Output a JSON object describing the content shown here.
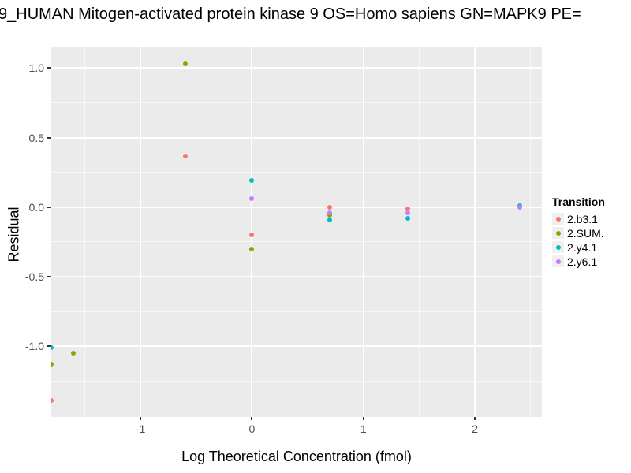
{
  "title": "9_HUMAN Mitogen-activated protein kinase 9 OS=Homo sapiens GN=MAPK9 PE=",
  "chart_data": {
    "type": "scatter",
    "title": "9_HUMAN Mitogen-activated protein kinase 9 OS=Homo sapiens GN=MAPK9 PE=",
    "xlabel": "Log Theoretical Concentration (fmol)",
    "ylabel": "Residual",
    "xlim": [
      -1.8,
      2.6
    ],
    "ylim": [
      -1.51,
      1.15
    ],
    "x_major_ticks": [
      -1,
      0,
      1,
      2
    ],
    "x_tick_labels": [
      "-1",
      "0",
      "1",
      "2"
    ],
    "x_minor_ticks": [
      -1.5,
      -0.5,
      0.5,
      1.5,
      2.5
    ],
    "y_major_ticks": [
      1.0,
      0.5,
      0.0,
      -0.5,
      -1.0
    ],
    "y_tick_labels": [
      "1.0",
      "0.5",
      "0.0",
      "-0.5",
      "-1.0"
    ],
    "y_minor_ticks": [
      0.75,
      0.25,
      -0.25,
      -0.75,
      -1.25
    ],
    "grid": true,
    "panel_background": "#EBEBEB",
    "gridline_color": "#FFFFFF",
    "legend_title": "Transition",
    "legend_position": "right",
    "series": [
      {
        "name": "2.b3.1",
        "color": "#F8766D",
        "points": [
          [
            -1.8,
            -1.39
          ],
          [
            -0.6,
            0.37
          ],
          [
            0.0,
            -0.2
          ],
          [
            0.7,
            0.0
          ],
          [
            1.4,
            -0.01
          ]
        ]
      },
      {
        "name": "2.SUM.",
        "color": "#7CAE00",
        "points": [
          [
            -1.8,
            -1.13
          ],
          [
            -1.6,
            -1.05
          ],
          [
            -0.6,
            1.03
          ],
          [
            0.0,
            -0.3
          ],
          [
            0.7,
            -0.06
          ]
        ]
      },
      {
        "name": "2.y4.1",
        "color": "#00BFC4",
        "points": [
          [
            -1.8,
            -1.01
          ],
          [
            0.0,
            0.19
          ],
          [
            0.7,
            -0.09
          ],
          [
            1.4,
            -0.08
          ],
          [
            2.4,
            0.01
          ]
        ]
      },
      {
        "name": "2.y6.1",
        "color": "#C77CFF",
        "points": [
          [
            0.0,
            0.06
          ],
          [
            0.7,
            -0.04
          ],
          [
            1.4,
            -0.04
          ],
          [
            2.4,
            0.0
          ]
        ]
      }
    ]
  }
}
